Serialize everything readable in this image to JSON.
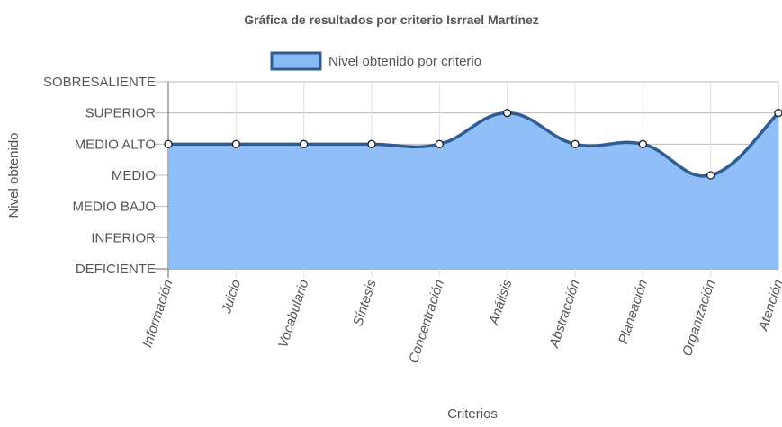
{
  "chart_data": {
    "type": "area",
    "title": "Gráfica de resultados por criterio Isrrael Martínez",
    "xlabel": "Criterios",
    "ylabel": "Nivel obtenido",
    "categories": [
      "Información",
      "Juicio",
      "Vocabulario",
      "Síntesis",
      "Concentración",
      "Análisis",
      "Abstracción",
      "Planeación",
      "Organización",
      "Atención"
    ],
    "y_levels": [
      "DEFICIENTE",
      "INFERIOR",
      "MEDIO BAJO",
      "MEDIO",
      "MEDIO ALTO",
      "SUPERIOR",
      "SOBRESALIENTE"
    ],
    "ylim": [
      0,
      6
    ],
    "series": [
      {
        "name": "Nivel obtenido por criterio",
        "values": [
          4,
          4,
          4,
          4,
          4,
          5,
          4,
          4,
          3,
          5
        ],
        "color": "#2f5d93",
        "fill": "#89bbf8"
      }
    ],
    "legend_position": "top-center",
    "grid": true
  }
}
